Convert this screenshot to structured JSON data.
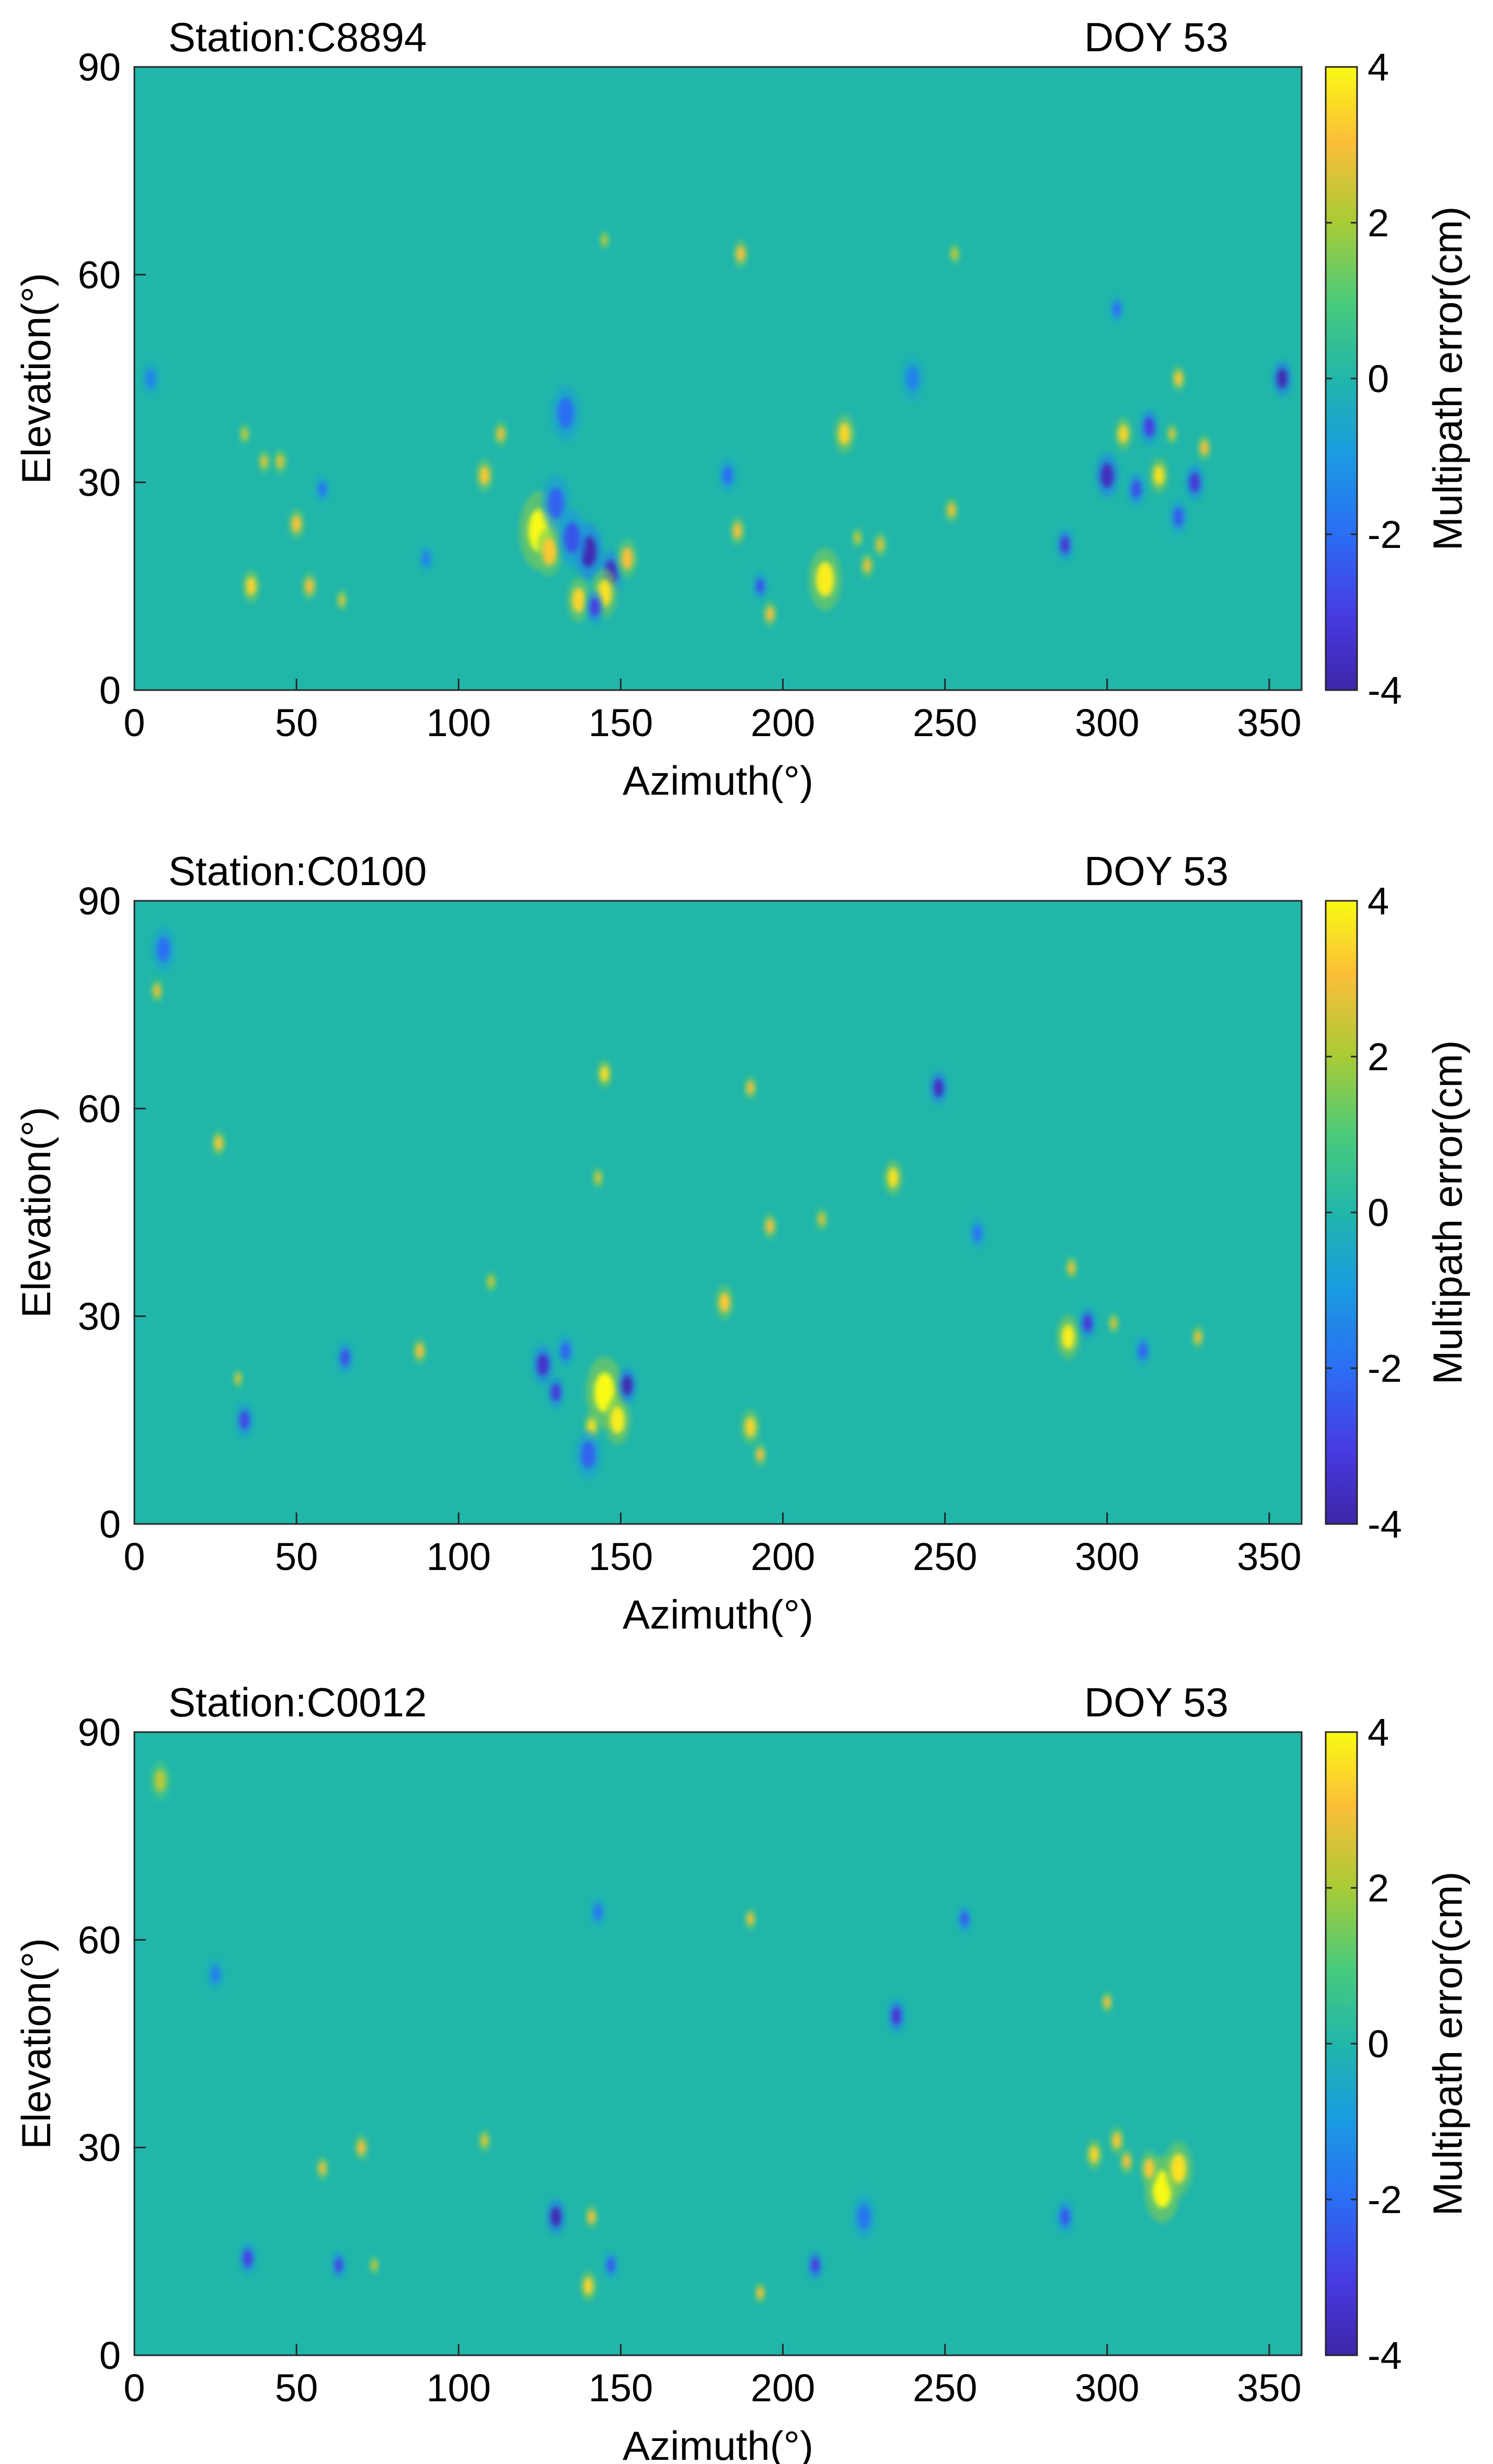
{
  "figure": {
    "colormap": "parula",
    "colors": {
      "background_green": "#1fb6a3",
      "cyan_blue": "#2aa5d8",
      "blue": "#2b63e0",
      "dark_blue": "#3b2fa3",
      "green": "#3fcf6e",
      "yellow_green": "#b8c93a",
      "orange": "#f5b93b",
      "yellow": "#f9f21a"
    }
  },
  "chart_data": [
    {
      "type": "heatmap",
      "title_left": "Station:C8894",
      "title_right": "DOY 53",
      "xlabel": "Azimuth(°)",
      "ylabel": "Elevation(°)",
      "xlim": [
        0,
        360
      ],
      "ylim": [
        0,
        90
      ],
      "xticks": [
        "0",
        "50",
        "100",
        "150",
        "200",
        "250",
        "300",
        "350"
      ],
      "yticks": [
        "0",
        "30",
        "60",
        "90"
      ],
      "colorbar": {
        "label": "Multipath error(cm)",
        "min": -4,
        "max": 4,
        "ticks": [
          "4",
          "2",
          "0",
          "-2",
          "-4"
        ]
      },
      "features": [
        {
          "az": 125,
          "el": 23,
          "value": 4.0,
          "size": 3.5
        },
        {
          "az": 128,
          "el": 20,
          "value": 3.2,
          "size": 2.2
        },
        {
          "az": 140,
          "el": 20,
          "value": -3.8,
          "size": 2.5
        },
        {
          "az": 135,
          "el": 22,
          "value": -2.5,
          "size": 2.5
        },
        {
          "az": 147,
          "el": 17,
          "value": -3.5,
          "size": 2
        },
        {
          "az": 145,
          "el": 14,
          "value": 3.6,
          "size": 2.2
        },
        {
          "az": 152,
          "el": 19,
          "value": 3.0,
          "size": 1.8
        },
        {
          "az": 137,
          "el": 13,
          "value": 3.4,
          "size": 2
        },
        {
          "az": 142,
          "el": 12,
          "value": -3,
          "size": 1.5
        },
        {
          "az": 130,
          "el": 27,
          "value": -2.2,
          "size": 2.5
        },
        {
          "az": 133,
          "el": 40,
          "value": -2,
          "size": 2.5
        },
        {
          "az": 108,
          "el": 31,
          "value": 3.2,
          "size": 1.5
        },
        {
          "az": 113,
          "el": 37,
          "value": 2.8,
          "size": 1.2
        },
        {
          "az": 36,
          "el": 15,
          "value": 3.4,
          "size": 1.5
        },
        {
          "az": 50,
          "el": 24,
          "value": 3.1,
          "size": 1.4
        },
        {
          "az": 54,
          "el": 15,
          "value": 3.0,
          "size": 1.3
        },
        {
          "az": 45,
          "el": 33,
          "value": 2.6,
          "size": 1.2
        },
        {
          "az": 40,
          "el": 33,
          "value": 2.6,
          "size": 1.1
        },
        {
          "az": 34,
          "el": 37,
          "value": 2.4,
          "size": 1
        },
        {
          "az": 64,
          "el": 13,
          "value": 2.6,
          "size": 1
        },
        {
          "az": 58,
          "el": 29,
          "value": -1.8,
          "size": 1.2
        },
        {
          "az": 90,
          "el": 19,
          "value": -1.6,
          "size": 1.2
        },
        {
          "az": 213,
          "el": 16,
          "value": 3.8,
          "size": 2.8
        },
        {
          "az": 219,
          "el": 37,
          "value": 3.4,
          "size": 1.8
        },
        {
          "az": 187,
          "el": 63,
          "value": 3.0,
          "size": 1.3
        },
        {
          "az": 186,
          "el": 23,
          "value": 3.0,
          "size": 1.3
        },
        {
          "az": 196,
          "el": 11,
          "value": 3.0,
          "size": 1.2
        },
        {
          "az": 193,
          "el": 15,
          "value": -2.6,
          "size": 1.2
        },
        {
          "az": 183,
          "el": 31,
          "value": -2,
          "size": 1.5
        },
        {
          "az": 226,
          "el": 18,
          "value": 2.8,
          "size": 1.2
        },
        {
          "az": 230,
          "el": 21,
          "value": 2.6,
          "size": 1.2
        },
        {
          "az": 252,
          "el": 26,
          "value": 2.8,
          "size": 1.2
        },
        {
          "az": 253,
          "el": 63,
          "value": 2.4,
          "size": 1
        },
        {
          "az": 145,
          "el": 65,
          "value": 2.4,
          "size": 0.9
        },
        {
          "az": 223,
          "el": 22,
          "value": 2.4,
          "size": 1
        },
        {
          "az": 287,
          "el": 21,
          "value": -3.2,
          "size": 1.4
        },
        {
          "az": 300,
          "el": 31,
          "value": -3.6,
          "size": 2
        },
        {
          "az": 305,
          "el": 37,
          "value": 3.4,
          "size": 1.5
        },
        {
          "az": 316,
          "el": 31,
          "value": 3.6,
          "size": 1.6
        },
        {
          "az": 322,
          "el": 45,
          "value": 3.2,
          "size": 1.2
        },
        {
          "az": 330,
          "el": 35,
          "value": 3.0,
          "size": 1.2
        },
        {
          "az": 313,
          "el": 38,
          "value": -3,
          "size": 1.6
        },
        {
          "az": 327,
          "el": 30,
          "value": -3.2,
          "size": 1.6
        },
        {
          "az": 309,
          "el": 29,
          "value": -2.6,
          "size": 1.5
        },
        {
          "az": 320,
          "el": 37,
          "value": 2.6,
          "size": 1
        },
        {
          "az": 354,
          "el": 45,
          "value": -3.8,
          "size": 1.6
        },
        {
          "az": 303,
          "el": 55,
          "value": -2,
          "size": 1.2
        },
        {
          "az": 322,
          "el": 25,
          "value": -2.4,
          "size": 1.5
        },
        {
          "az": 5,
          "el": 45,
          "value": -1.5,
          "size": 1.5
        },
        {
          "az": 240,
          "el": 45,
          "value": -1.5,
          "size": 2
        }
      ]
    },
    {
      "type": "heatmap",
      "title_left": "Station:C0100",
      "title_right": "DOY 53",
      "xlabel": "Azimuth(°)",
      "ylabel": "Elevation(°)",
      "xlim": [
        0,
        360
      ],
      "ylim": [
        0,
        90
      ],
      "xticks": [
        "0",
        "50",
        "100",
        "150",
        "200",
        "250",
        "300",
        "350"
      ],
      "yticks": [
        "0",
        "30",
        "60",
        "90"
      ],
      "colorbar": {
        "label": "Multipath error(cm)",
        "min": -4,
        "max": 4,
        "ticks": [
          "4",
          "2",
          "0",
          "-2",
          "-4"
        ]
      },
      "features": [
        {
          "az": 145,
          "el": 19,
          "value": 4.0,
          "size": 3.2
        },
        {
          "az": 149,
          "el": 15,
          "value": 3.8,
          "size": 2.2
        },
        {
          "az": 152,
          "el": 20,
          "value": -3.8,
          "size": 1.6
        },
        {
          "az": 126,
          "el": 23,
          "value": -3.4,
          "size": 1.8
        },
        {
          "az": 130,
          "el": 19,
          "value": -3.2,
          "size": 1.4
        },
        {
          "az": 141,
          "el": 14,
          "value": 3.6,
          "size": 1.3
        },
        {
          "az": 140,
          "el": 10,
          "value": -2.2,
          "size": 2.2
        },
        {
          "az": 133,
          "el": 25,
          "value": -2.2,
          "size": 1.4
        },
        {
          "az": 145,
          "el": 65,
          "value": 3.5,
          "size": 1.3
        },
        {
          "az": 190,
          "el": 63,
          "value": 3.0,
          "size": 1.1
        },
        {
          "az": 234,
          "el": 50,
          "value": 3.6,
          "size": 1.6
        },
        {
          "az": 248,
          "el": 63,
          "value": -3.6,
          "size": 1.5
        },
        {
          "az": 182,
          "el": 32,
          "value": 3.2,
          "size": 1.6
        },
        {
          "az": 196,
          "el": 43,
          "value": 3.0,
          "size": 1.2
        },
        {
          "az": 212,
          "el": 44,
          "value": 2.5,
          "size": 1.1
        },
        {
          "az": 190,
          "el": 14,
          "value": 3.4,
          "size": 1.6
        },
        {
          "az": 193,
          "el": 10,
          "value": 3.0,
          "size": 1.1
        },
        {
          "az": 26,
          "el": 55,
          "value": 3.2,
          "size": 1.2
        },
        {
          "az": 7,
          "el": 77,
          "value": 2.8,
          "size": 1.1
        },
        {
          "az": 34,
          "el": 15,
          "value": -2.8,
          "size": 1.5
        },
        {
          "az": 32,
          "el": 21,
          "value": 2.6,
          "size": 0.9
        },
        {
          "az": 65,
          "el": 24,
          "value": -2.6,
          "size": 1.4
        },
        {
          "az": 88,
          "el": 25,
          "value": 3.0,
          "size": 1.2
        },
        {
          "az": 110,
          "el": 35,
          "value": 2.4,
          "size": 1
        },
        {
          "az": 143,
          "el": 50,
          "value": 2.6,
          "size": 1
        },
        {
          "az": 288,
          "el": 27,
          "value": 3.8,
          "size": 2
        },
        {
          "az": 294,
          "el": 29,
          "value": -3.2,
          "size": 1.4
        },
        {
          "az": 289,
          "el": 37,
          "value": 2.8,
          "size": 1.1
        },
        {
          "az": 302,
          "el": 29,
          "value": 2.6,
          "size": 1
        },
        {
          "az": 328,
          "el": 27,
          "value": 2.8,
          "size": 1.1
        },
        {
          "az": 311,
          "el": 25,
          "value": -2.2,
          "size": 1.3
        },
        {
          "az": 9,
          "el": 83,
          "value": -2,
          "size": 2
        },
        {
          "az": 260,
          "el": 42,
          "value": -1.8,
          "size": 1.4
        }
      ]
    },
    {
      "type": "heatmap",
      "title_left": "Station:C0012",
      "title_right": "DOY 53",
      "xlabel": "Azimuth(°)",
      "ylabel": "Elevation(°)",
      "xlim": [
        0,
        360
      ],
      "ylim": [
        0,
        90
      ],
      "xticks": [
        "0",
        "50",
        "100",
        "150",
        "200",
        "250",
        "300",
        "350"
      ],
      "yticks": [
        "0",
        "30",
        "60",
        "90"
      ],
      "colorbar": {
        "label": "Multipath error(cm)",
        "min": -4,
        "max": 4,
        "ticks": [
          "4",
          "2",
          "0",
          "-2",
          "-4"
        ]
      },
      "features": [
        {
          "az": 317,
          "el": 24,
          "value": 4.0,
          "size": 3
        },
        {
          "az": 322,
          "el": 27,
          "value": 3.6,
          "size": 2.4
        },
        {
          "az": 313,
          "el": 27,
          "value": 3.2,
          "size": 1.6
        },
        {
          "az": 296,
          "el": 29,
          "value": 3.4,
          "size": 1.4
        },
        {
          "az": 303,
          "el": 31,
          "value": 3.2,
          "size": 1.3
        },
        {
          "az": 306,
          "el": 28,
          "value": 3.0,
          "size": 1.2
        },
        {
          "az": 300,
          "el": 51,
          "value": 3.0,
          "size": 1
        },
        {
          "az": 287,
          "el": 20,
          "value": -2.4,
          "size": 1.5
        },
        {
          "az": 130,
          "el": 20,
          "value": -3.8,
          "size": 1.6
        },
        {
          "az": 140,
          "el": 10,
          "value": 3.4,
          "size": 1.4
        },
        {
          "az": 141,
          "el": 20,
          "value": 3.0,
          "size": 1.1
        },
        {
          "az": 147,
          "el": 13,
          "value": -2.4,
          "size": 1.2
        },
        {
          "az": 190,
          "el": 63,
          "value": 3.0,
          "size": 1
        },
        {
          "az": 193,
          "el": 9,
          "value": 3.0,
          "size": 1
        },
        {
          "az": 235,
          "el": 49,
          "value": -3.2,
          "size": 1.5
        },
        {
          "az": 210,
          "el": 13,
          "value": -3.0,
          "size": 1.3
        },
        {
          "az": 256,
          "el": 63,
          "value": -2.4,
          "size": 1.2
        },
        {
          "az": 35,
          "el": 14,
          "value": -3.0,
          "size": 1.4
        },
        {
          "az": 63,
          "el": 13,
          "value": -2.8,
          "size": 1.2
        },
        {
          "az": 70,
          "el": 30,
          "value": 3.0,
          "size": 1.2
        },
        {
          "az": 58,
          "el": 27,
          "value": 2.8,
          "size": 1.1
        },
        {
          "az": 108,
          "el": 31,
          "value": 2.6,
          "size": 1.1
        },
        {
          "az": 74,
          "el": 13,
          "value": 2.4,
          "size": 0.9
        },
        {
          "az": 8,
          "el": 83,
          "value": 2.2,
          "size": 1.8
        },
        {
          "az": 143,
          "el": 64,
          "value": -1.8,
          "size": 1.3
        },
        {
          "az": 225,
          "el": 20,
          "value": -1.8,
          "size": 2
        },
        {
          "az": 25,
          "el": 55,
          "value": -1.6,
          "size": 1.4
        }
      ]
    }
  ]
}
